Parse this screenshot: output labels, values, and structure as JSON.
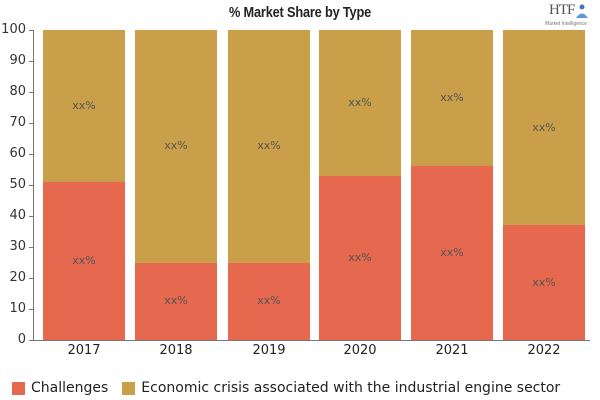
{
  "title": "% Market Share by Type",
  "logo": {
    "main": "HTF",
    "sub": "Market Intelligence"
  },
  "colors": {
    "challenges": "#E5684F",
    "economic": "#C9A049"
  },
  "chart_data": {
    "type": "bar",
    "stacked": true,
    "title": "% Market Share by Type",
    "xlabel": "",
    "ylabel": "",
    "ylim": [
      0,
      100
    ],
    "yticks": [
      0,
      10,
      20,
      30,
      40,
      50,
      60,
      70,
      80,
      90,
      100
    ],
    "grid": false,
    "legend_position": "bottom",
    "categories": [
      "2017",
      "2018",
      "2019",
      "2020",
      "2021",
      "2022"
    ],
    "series": [
      {
        "name": "Challenges",
        "color": "#E5684F",
        "values": [
          51,
          25,
          25,
          53,
          56,
          37
        ],
        "labels": [
          "xx%",
          "xx%",
          "xx%",
          "xx%",
          "xx%",
          "xx%"
        ]
      },
      {
        "name": "Economic crisis associated with the industrial engine sector",
        "color": "#C9A049",
        "values": [
          49,
          75,
          75,
          47,
          44,
          63
        ],
        "labels": [
          "xx%",
          "xx%",
          "xx%",
          "xx%",
          "xx%",
          "xx%"
        ]
      }
    ]
  },
  "legend": [
    {
      "label": "Challenges"
    },
    {
      "label": "Economic crisis associated with the industrial engine sector"
    }
  ]
}
